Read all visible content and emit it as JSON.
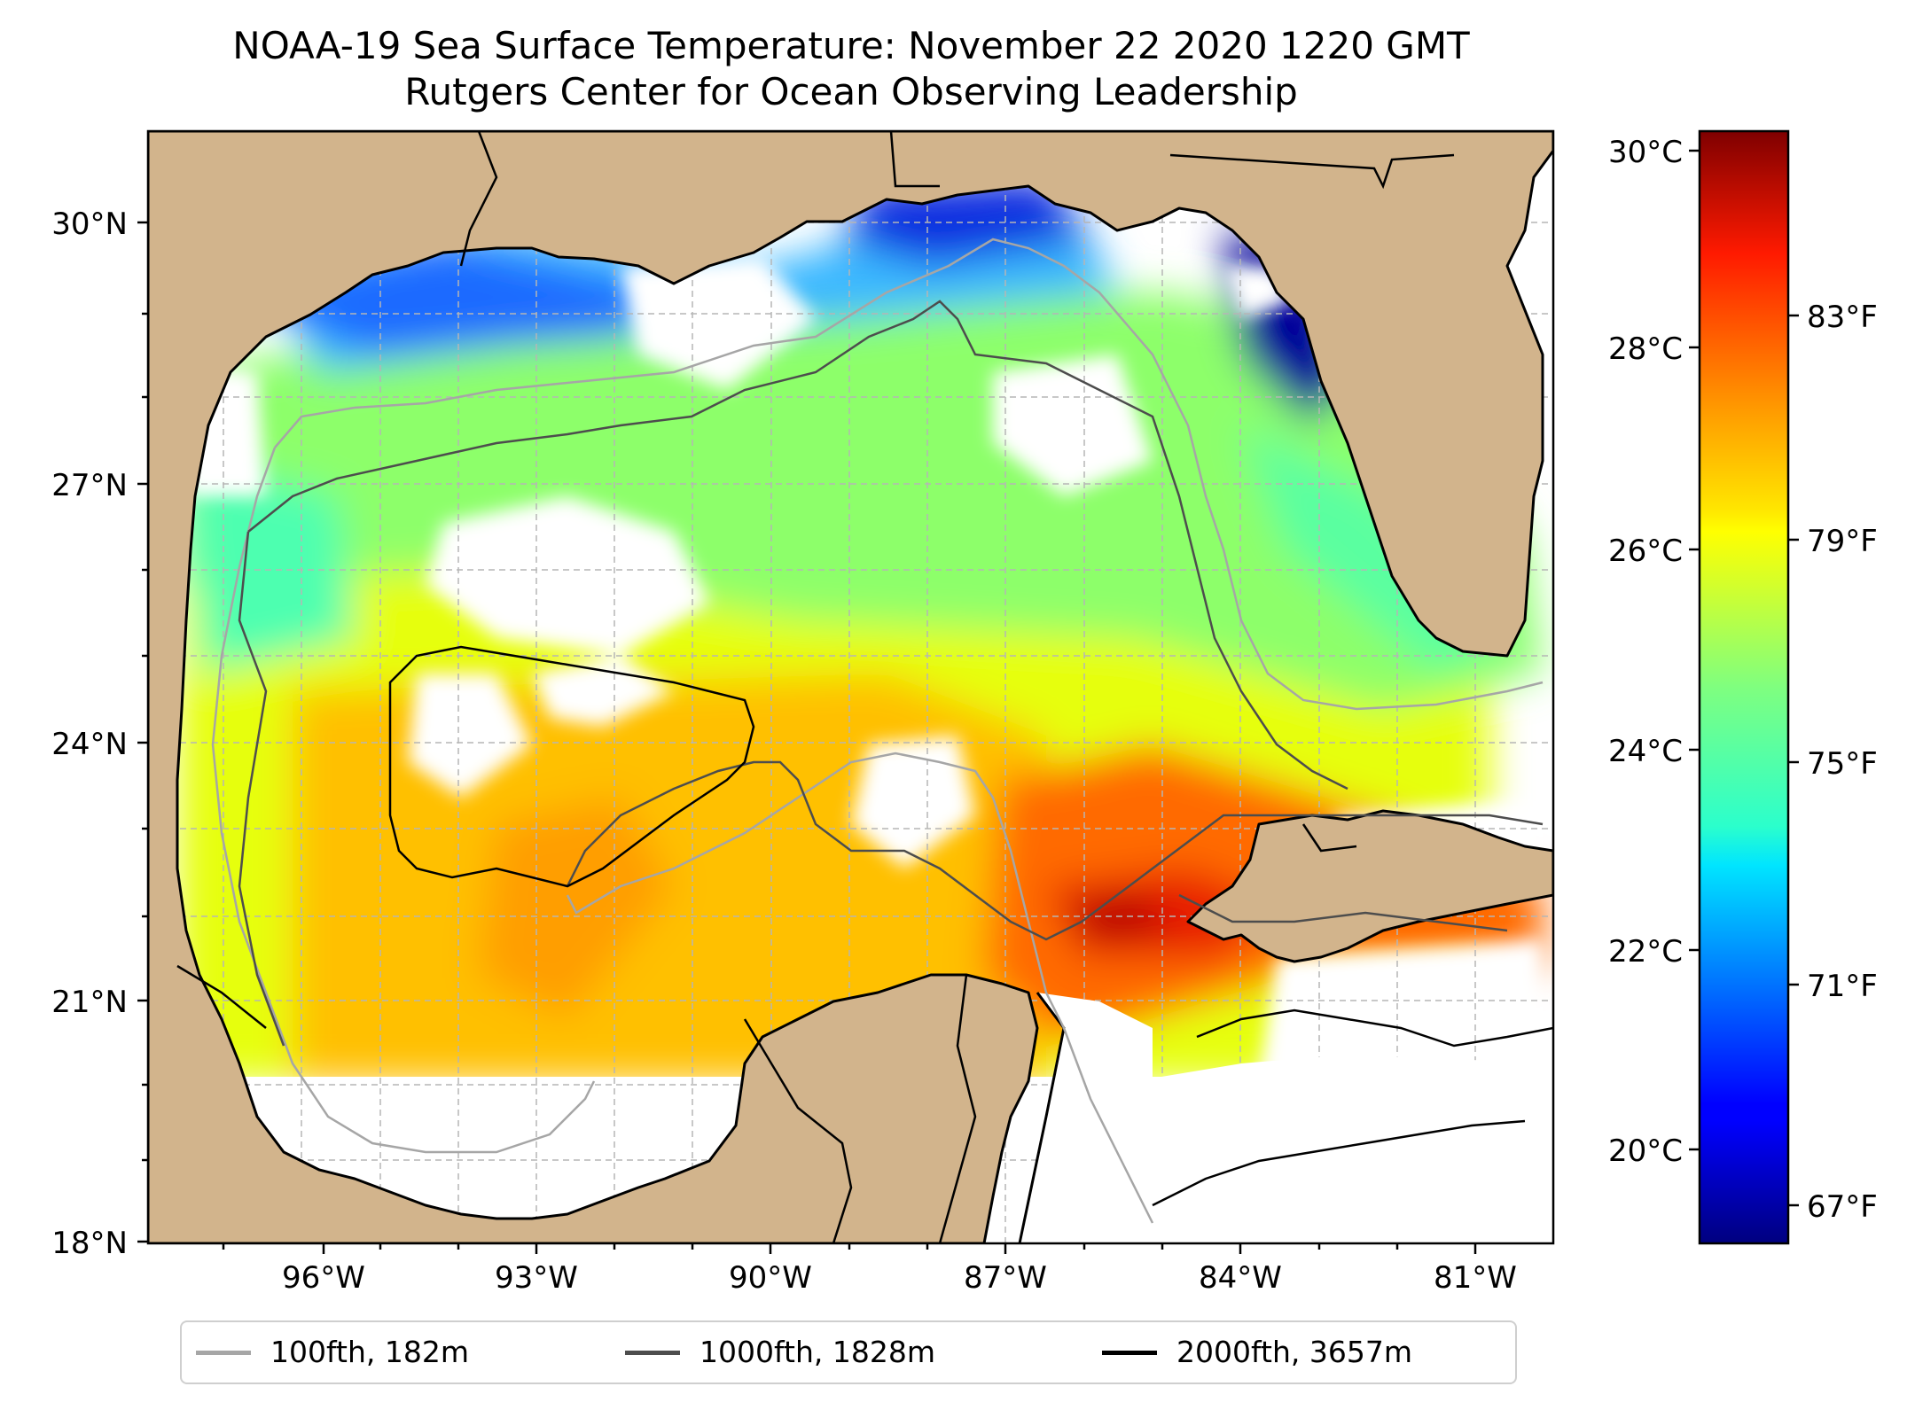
{
  "title_line1": "NOAA-19 Sea Surface Temperature: November 22 2020 1220 GMT",
  "title_line2": "Rutgers Center for Ocean Observing Leadership",
  "map": {
    "lat_range": [
      18,
      31
    ],
    "lon_range": [
      -98,
      -80.3
    ],
    "lat_ticks": [
      "30°N",
      "27°N",
      "24°N",
      "21°N",
      "18°N"
    ],
    "lon_ticks": [
      "96°W",
      "93°W",
      "90°W",
      "87°W",
      "84°W",
      "81°W"
    ],
    "land_color": "#d2b48c",
    "gridlines": true
  },
  "colorbar": {
    "colormap": "jet",
    "celsius_ticks": [
      "30°C",
      "28°C",
      "26°C",
      "24°C",
      "22°C",
      "20°C"
    ],
    "fahrenheit_ticks": [
      "83°F",
      "79°F",
      "75°F",
      "71°F",
      "67°F"
    ],
    "range_c": [
      19,
      30.2
    ]
  },
  "legend": {
    "items": [
      {
        "label": "100fth, 182m",
        "color": "#a6a6a6"
      },
      {
        "label": "1000fth, 1828m",
        "color": "#4d4d4d"
      },
      {
        "label": "2000fth, 3657m",
        "color": "#000000"
      }
    ]
  }
}
